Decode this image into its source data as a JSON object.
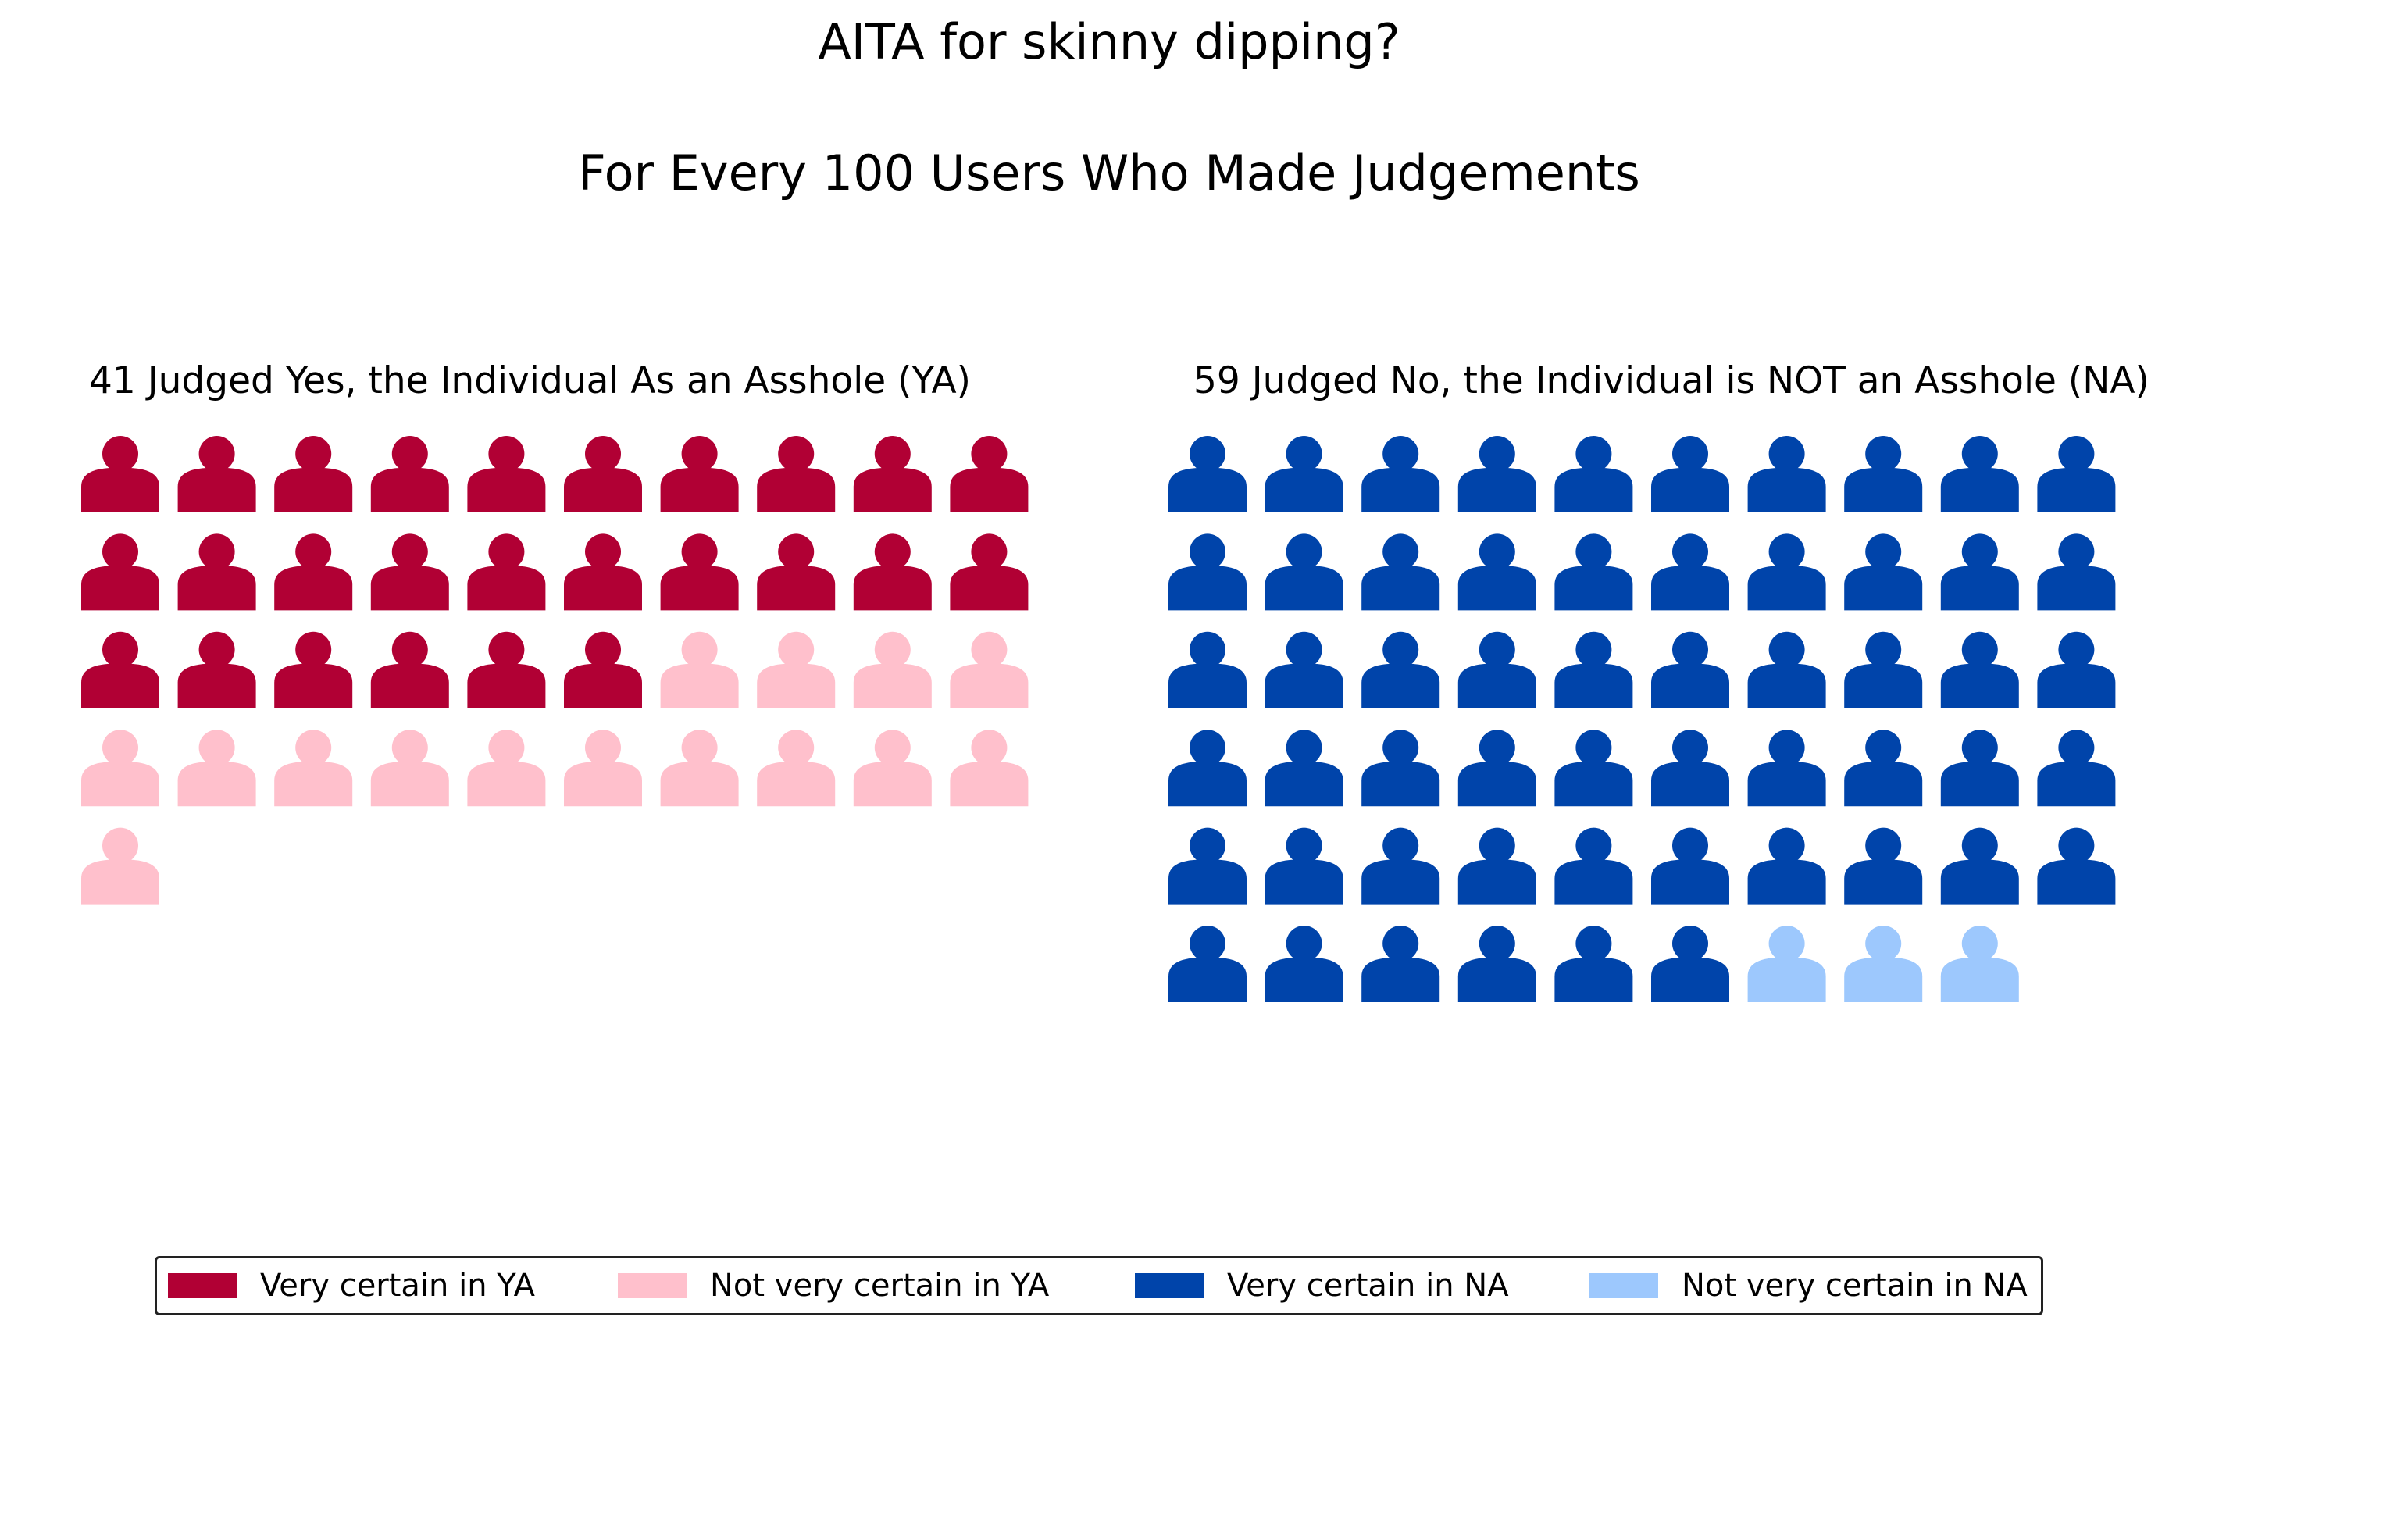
{
  "title": "AITA for skinny dipping?\n\nFor Every 100 Users Who Made Judgements",
  "colors": {
    "very_certain_ya": "#b10034",
    "not_very_certain_ya": "#ffc0cc",
    "very_certain_na": "#0044aa",
    "not_very_certain_na": "#9dc8fd"
  },
  "chart_data": {
    "type": "pictogram",
    "icon": "person-icon",
    "icons_per_row": 10,
    "panels": [
      {
        "id": "ya",
        "title": "41 Judged Yes, the Individual As an Asshole (YA)",
        "total": 41,
        "segments": [
          {
            "name": "Very certain in YA",
            "count": 26,
            "color": "#b10034"
          },
          {
            "name": "Not very certain in YA",
            "count": 15,
            "color": "#ffc0cc"
          }
        ]
      },
      {
        "id": "na",
        "title": "59 Judged No, the Individual is NOT an Asshole (NA)",
        "total": 59,
        "segments": [
          {
            "name": "Very certain in NA",
            "count": 56,
            "color": "#0044aa"
          },
          {
            "name": "Not very certain in NA",
            "count": 3,
            "color": "#9dc8fd"
          }
        ]
      }
    ],
    "legend": {
      "placement": "bottom",
      "entries": [
        {
          "label": "Very certain in YA",
          "color": "#b10034"
        },
        {
          "label": "Not very certain in YA",
          "color": "#ffc0cc"
        },
        {
          "label": "Very certain in NA",
          "color": "#0044aa"
        },
        {
          "label": "Not very certain in NA",
          "color": "#9dc8fd"
        }
      ]
    }
  }
}
